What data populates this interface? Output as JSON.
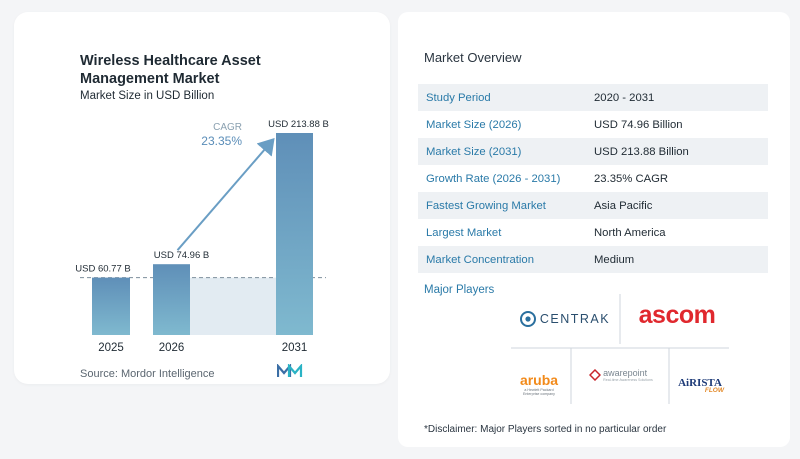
{
  "chart": {
    "title_line1": "Wireless Healthcare Asset",
    "title_line2": "Management Market",
    "subtitle": "Market Size in USD Billion",
    "cagr_label": "CAGR",
    "cagr_value": "23.35%",
    "source": "Source:  Mordor Intelligence"
  },
  "chart_data": {
    "type": "bar",
    "categories": [
      "2025",
      "2026",
      "2031"
    ],
    "values": [
      60.77,
      74.96,
      213.88
    ],
    "value_labels": [
      "USD 60.77 B",
      "USD 74.96 B",
      "USD 213.88 B"
    ],
    "title": "Wireless Healthcare Asset Management Market",
    "ylabel": "Market Size in USD Billion",
    "ylim": [
      0,
      213.88
    ],
    "colors": [
      "#5a8db8",
      "#5a8db8",
      "#6fa4c4"
    ]
  },
  "overview": {
    "title": "Market Overview",
    "rows": [
      {
        "label": "Study Period",
        "value": "2020 - 2031"
      },
      {
        "label": "Market Size (2026)",
        "value": "USD 74.96 Billion"
      },
      {
        "label": "Market Size (2031)",
        "value": "USD 213.88 Billion"
      },
      {
        "label": "Growth Rate (2026 - 2031)",
        "value": "23.35% CAGR"
      },
      {
        "label": "Fastest Growing Market",
        "value": "Asia Pacific"
      },
      {
        "label": "Largest Market",
        "value": "North America"
      },
      {
        "label": "Market Concentration",
        "value": "Medium"
      }
    ]
  },
  "players": {
    "title": "Major Players",
    "logos": {
      "centrak": "CENTRAK",
      "ascom": "ascom",
      "aruba": "aruba",
      "aruba_sub": "a Hewlett Packard Enterprise company",
      "awarepoint": "awarepoint",
      "awarepoint_sub": "Real-time Awareness Solutions",
      "airista": "AiRISTA",
      "airista_sub": "FLOW"
    }
  },
  "disclaimer": "*Disclaimer: Major Players sorted in no particular order"
}
